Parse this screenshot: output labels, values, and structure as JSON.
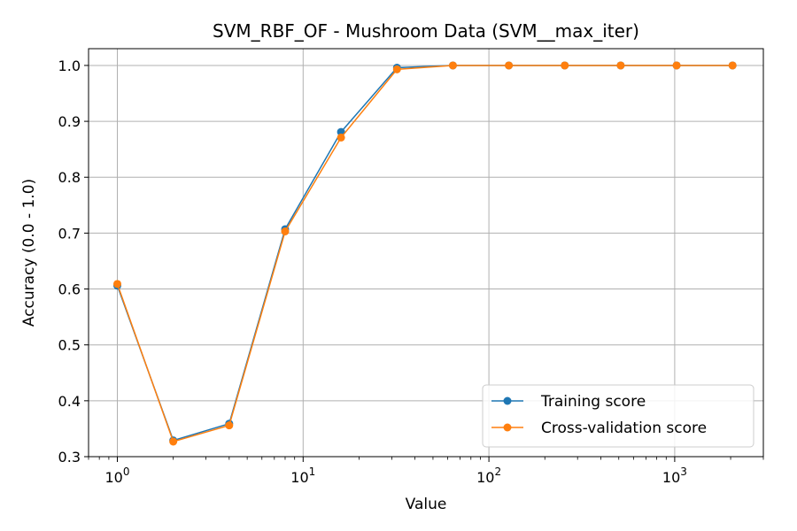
{
  "chart_data": {
    "type": "line",
    "title": "SVM_RBF_OF - Mushroom Data (SVM__max_iter)",
    "xlabel": "Value",
    "ylabel": "Accuracy (0.0 - 1.0)",
    "xscale": "log",
    "xlim": [
      0.7,
      3000
    ],
    "ylim": [
      0.3,
      1.03
    ],
    "grid": true,
    "legend_position": "lower-right",
    "x_ticks": [
      {
        "value": 1,
        "base": "10",
        "exp": "0"
      },
      {
        "value": 10,
        "base": "10",
        "exp": "1"
      },
      {
        "value": 100,
        "base": "10",
        "exp": "2"
      },
      {
        "value": 1000,
        "base": "10",
        "exp": "3"
      }
    ],
    "y_ticks": [
      {
        "value": 0.3,
        "label": "0.3"
      },
      {
        "value": 0.4,
        "label": "0.4"
      },
      {
        "value": 0.5,
        "label": "0.5"
      },
      {
        "value": 0.6,
        "label": "0.6"
      },
      {
        "value": 0.7,
        "label": "0.7"
      },
      {
        "value": 0.8,
        "label": "0.8"
      },
      {
        "value": 0.9,
        "label": "0.9"
      },
      {
        "value": 1.0,
        "label": "1.0"
      }
    ],
    "x": [
      1,
      2,
      4,
      8,
      16,
      32,
      64,
      128,
      256,
      512,
      1024,
      2048
    ],
    "series": [
      {
        "name": "Training score",
        "color": "#1f77b4",
        "values": [
          0.606,
          0.329,
          0.359,
          0.707,
          0.881,
          0.996,
          1.0,
          1.0,
          1.0,
          1.0,
          1.0,
          1.0
        ]
      },
      {
        "name": "Cross-validation score",
        "color": "#ff7f0e",
        "values": [
          0.609,
          0.327,
          0.356,
          0.703,
          0.871,
          0.993,
          1.0,
          1.0,
          1.0,
          1.0,
          1.0,
          1.0
        ]
      }
    ]
  }
}
